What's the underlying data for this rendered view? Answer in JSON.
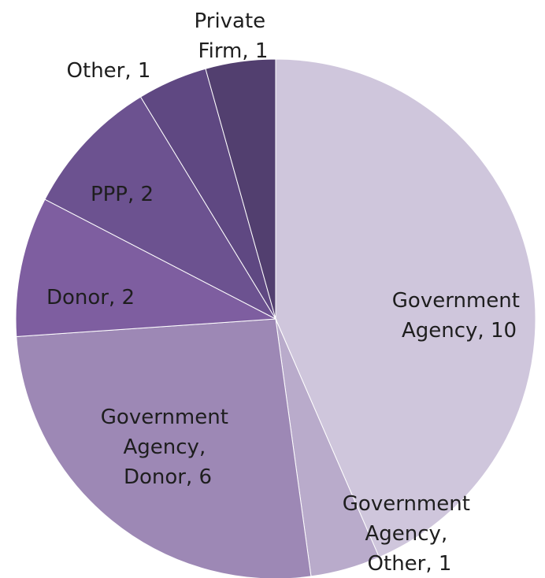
{
  "chart_data": {
    "type": "pie",
    "categories": [
      "Government Agency",
      "Government Agency, Other",
      "Government Agency, Donor",
      "Donor",
      "PPP",
      "Other",
      "Private Firm"
    ],
    "values": [
      10,
      1,
      6,
      2,
      2,
      1,
      1
    ],
    "value_labels": [
      "Government Agency, 10",
      "Government Agency, Other, 1",
      "Government Agency, Donor, 6",
      "Donor, 2",
      "PPP, 2",
      "Other, 1",
      "Private Firm, 1"
    ],
    "colors": [
      "#cfc6dc",
      "#b9abcb",
      "#9d88b5",
      "#7e5ea0",
      "#6c5290",
      "#5f4882",
      "#523f6f"
    ]
  }
}
